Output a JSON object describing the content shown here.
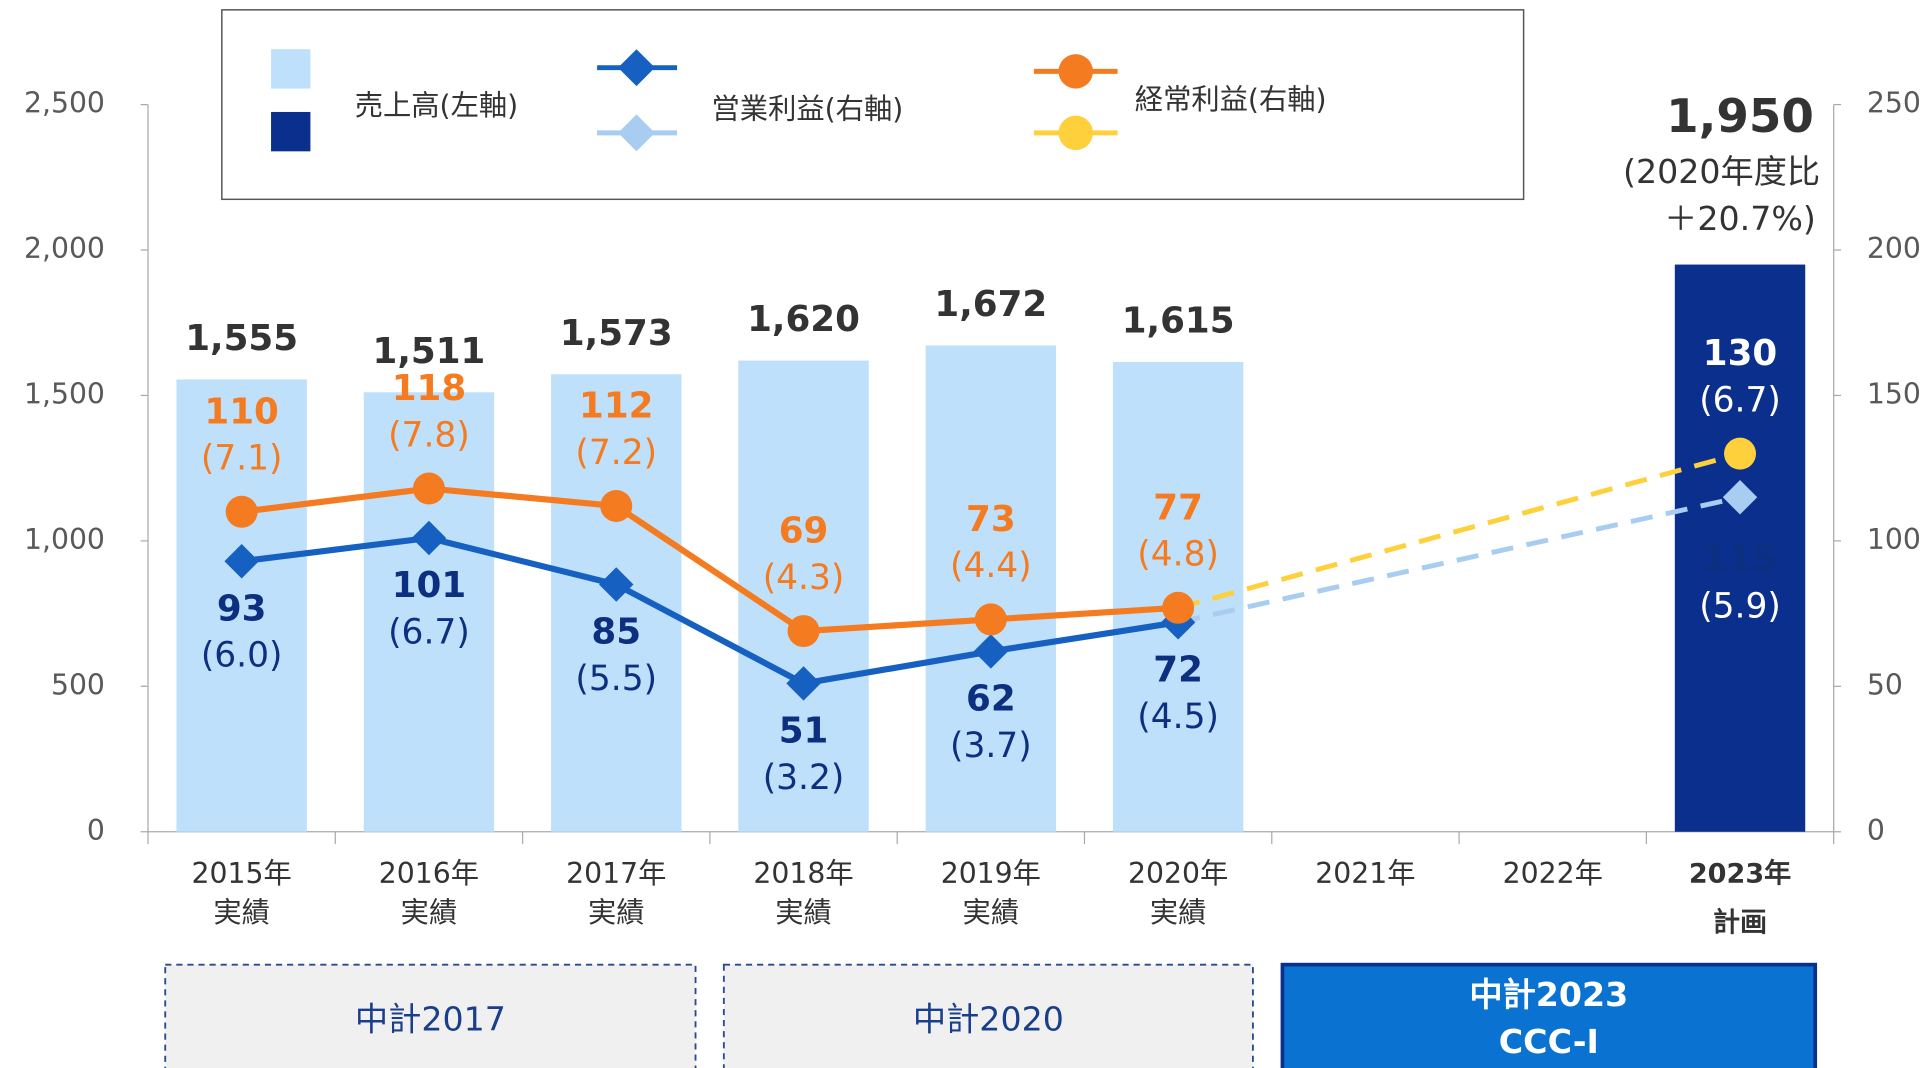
{
  "chart_data": {
    "type": "combo",
    "categories": [
      [
        "2015年",
        "実績"
      ],
      [
        "2016年",
        "実績"
      ],
      [
        "2017年",
        "実績"
      ],
      [
        "2018年",
        "実績"
      ],
      [
        "2019年",
        "実績"
      ],
      [
        "2020年",
        "実績"
      ],
      [
        "2021年"
      ],
      [
        "2022年"
      ],
      [
        "2023年",
        "計画"
      ]
    ],
    "ylim": [
      0,
      2500
    ],
    "yticks": [
      0,
      500,
      {
        "value": 1000,
        "label": "1,000"
      },
      {
        "value": 1500,
        "label": "1,500"
      },
      {
        "value": 2000,
        "label": "2,000"
      },
      {
        "value": 2500,
        "label": "2,500"
      }
    ],
    "y2lim": [
      0,
      250
    ],
    "y2ticks": [
      0,
      50,
      100,
      150,
      200,
      250
    ],
    "series": [
      {
        "name": "売上高(左軸)",
        "type": "bar",
        "color": "#bfe0fb",
        "plan_color": "#0a2f8c",
        "values": [
          1555,
          1511,
          1573,
          1620,
          1672,
          1615,
          null,
          null,
          1950
        ],
        "value_labels": [
          "1,555",
          "1,511",
          "1,573",
          "1,620",
          "1,672",
          "1,615",
          null,
          null,
          "1,950"
        ],
        "annotation": [
          "(2020年度比",
          "＋20.7%)"
        ]
      },
      {
        "name": "営業利益(右軸)",
        "type": "line",
        "axis": "y2",
        "color": "#1560c0",
        "plan_color": "#a8cdf0",
        "label_color": "#0d2f80",
        "values": [
          93,
          101,
          85,
          51,
          62,
          72,
          null,
          null,
          115
        ],
        "ratio_labels": [
          "(6.0)",
          "(6.7)",
          "(5.5)",
          "(3.2)",
          "(3.7)",
          "(4.5)",
          null,
          null,
          "(5.9)"
        ]
      },
      {
        "name": "経常利益(右軸)",
        "type": "line",
        "axis": "y2",
        "color": "#f47b20",
        "plan_color": "#fdd03c",
        "label_color": "#f47b20",
        "values": [
          110,
          118,
          112,
          69,
          73,
          77,
          null,
          null,
          130
        ],
        "ratio_labels": [
          "(7.1)",
          "(7.8)",
          "(7.2)",
          "(4.3)",
          "(4.4)",
          "(4.8)",
          null,
          null,
          "(6.7)"
        ]
      }
    ],
    "periods": [
      {
        "label": [
          "中計2017"
        ]
      },
      {
        "label": [
          "中計2020"
        ]
      },
      {
        "label": [
          "中計2023",
          "CCC-Ⅰ"
        ]
      }
    ]
  }
}
